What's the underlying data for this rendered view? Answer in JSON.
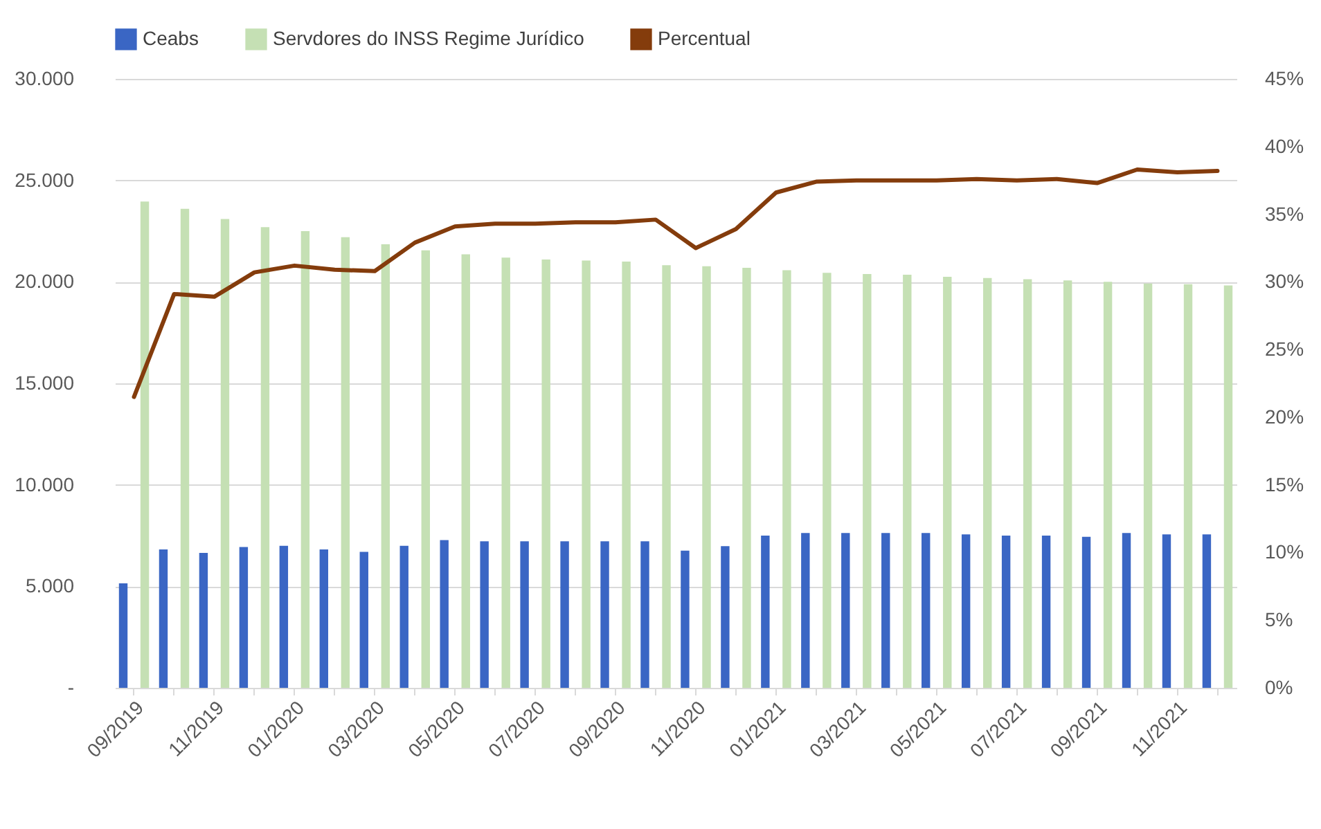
{
  "chart_data": {
    "type": "bar",
    "categories": [
      "09/2019",
      null,
      "11/2019",
      null,
      "01/2020",
      null,
      "03/2020",
      null,
      "05/2020",
      null,
      "07/2020",
      null,
      "09/2020",
      null,
      "11/2020",
      null,
      "01/2021",
      null,
      "03/2021",
      null,
      "05/2021",
      null,
      "07/2021",
      null,
      "09/2021",
      null,
      "11/2021",
      null
    ],
    "series": [
      {
        "name": "Ceabs",
        "color": "#3a66c4",
        "values": [
          5150,
          6820,
          6650,
          6940,
          7000,
          6820,
          6700,
          7000,
          7280,
          7220,
          7220,
          7220,
          7220,
          7220,
          6760,
          6980,
          7500,
          7630,
          7630,
          7630,
          7630,
          7560,
          7500,
          7500,
          7440,
          7630,
          7560,
          7560
        ]
      },
      {
        "name": "Servdores do INSS Regime Jurídico",
        "color": "#c5e0b4",
        "values": [
          23960,
          23600,
          23100,
          22700,
          22500,
          22200,
          21850,
          21550,
          21360,
          21200,
          21100,
          21050,
          21000,
          20820,
          20770,
          20690,
          20570,
          20450,
          20390,
          20350,
          20250,
          20190,
          20130,
          20070,
          20000,
          19920,
          19880,
          19820
        ]
      },
      {
        "name": "Percentual",
        "type": "line",
        "axis": "y2",
        "color": "#843c0c",
        "values": [
          21.5,
          29.1,
          28.9,
          30.7,
          31.2,
          30.9,
          30.8,
          32.9,
          34.1,
          34.3,
          34.3,
          34.4,
          34.4,
          34.6,
          32.5,
          33.9,
          36.6,
          37.4,
          37.5,
          37.5,
          37.5,
          37.6,
          37.5,
          37.6,
          37.3,
          38.3,
          38.1,
          38.2
        ]
      }
    ],
    "ylim": [
      0,
      30000
    ],
    "yticks": [
      {
        "value": 0,
        "label": "-"
      },
      {
        "value": 5000,
        "label": "5.000"
      },
      {
        "value": 10000,
        "label": "10.000"
      },
      {
        "value": 15000,
        "label": "15.000"
      },
      {
        "value": 20000,
        "label": "20.000"
      },
      {
        "value": 25000,
        "label": "25.000"
      },
      {
        "value": 30000,
        "label": "30.000"
      }
    ],
    "y2lim": [
      0,
      45
    ],
    "y2ticks": [
      {
        "value": 0,
        "label": "0%"
      },
      {
        "value": 5,
        "label": "5%"
      },
      {
        "value": 10,
        "label": "10%"
      },
      {
        "value": 15,
        "label": "15%"
      },
      {
        "value": 20,
        "label": "20%"
      },
      {
        "value": 25,
        "label": "25%"
      },
      {
        "value": 30,
        "label": "30%"
      },
      {
        "value": 35,
        "label": "35%"
      },
      {
        "value": 40,
        "label": "40%"
      },
      {
        "value": 45,
        "label": "45%"
      }
    ],
    "grid": "y",
    "legend": "top",
    "marker": "none",
    "line_style": "solid"
  }
}
